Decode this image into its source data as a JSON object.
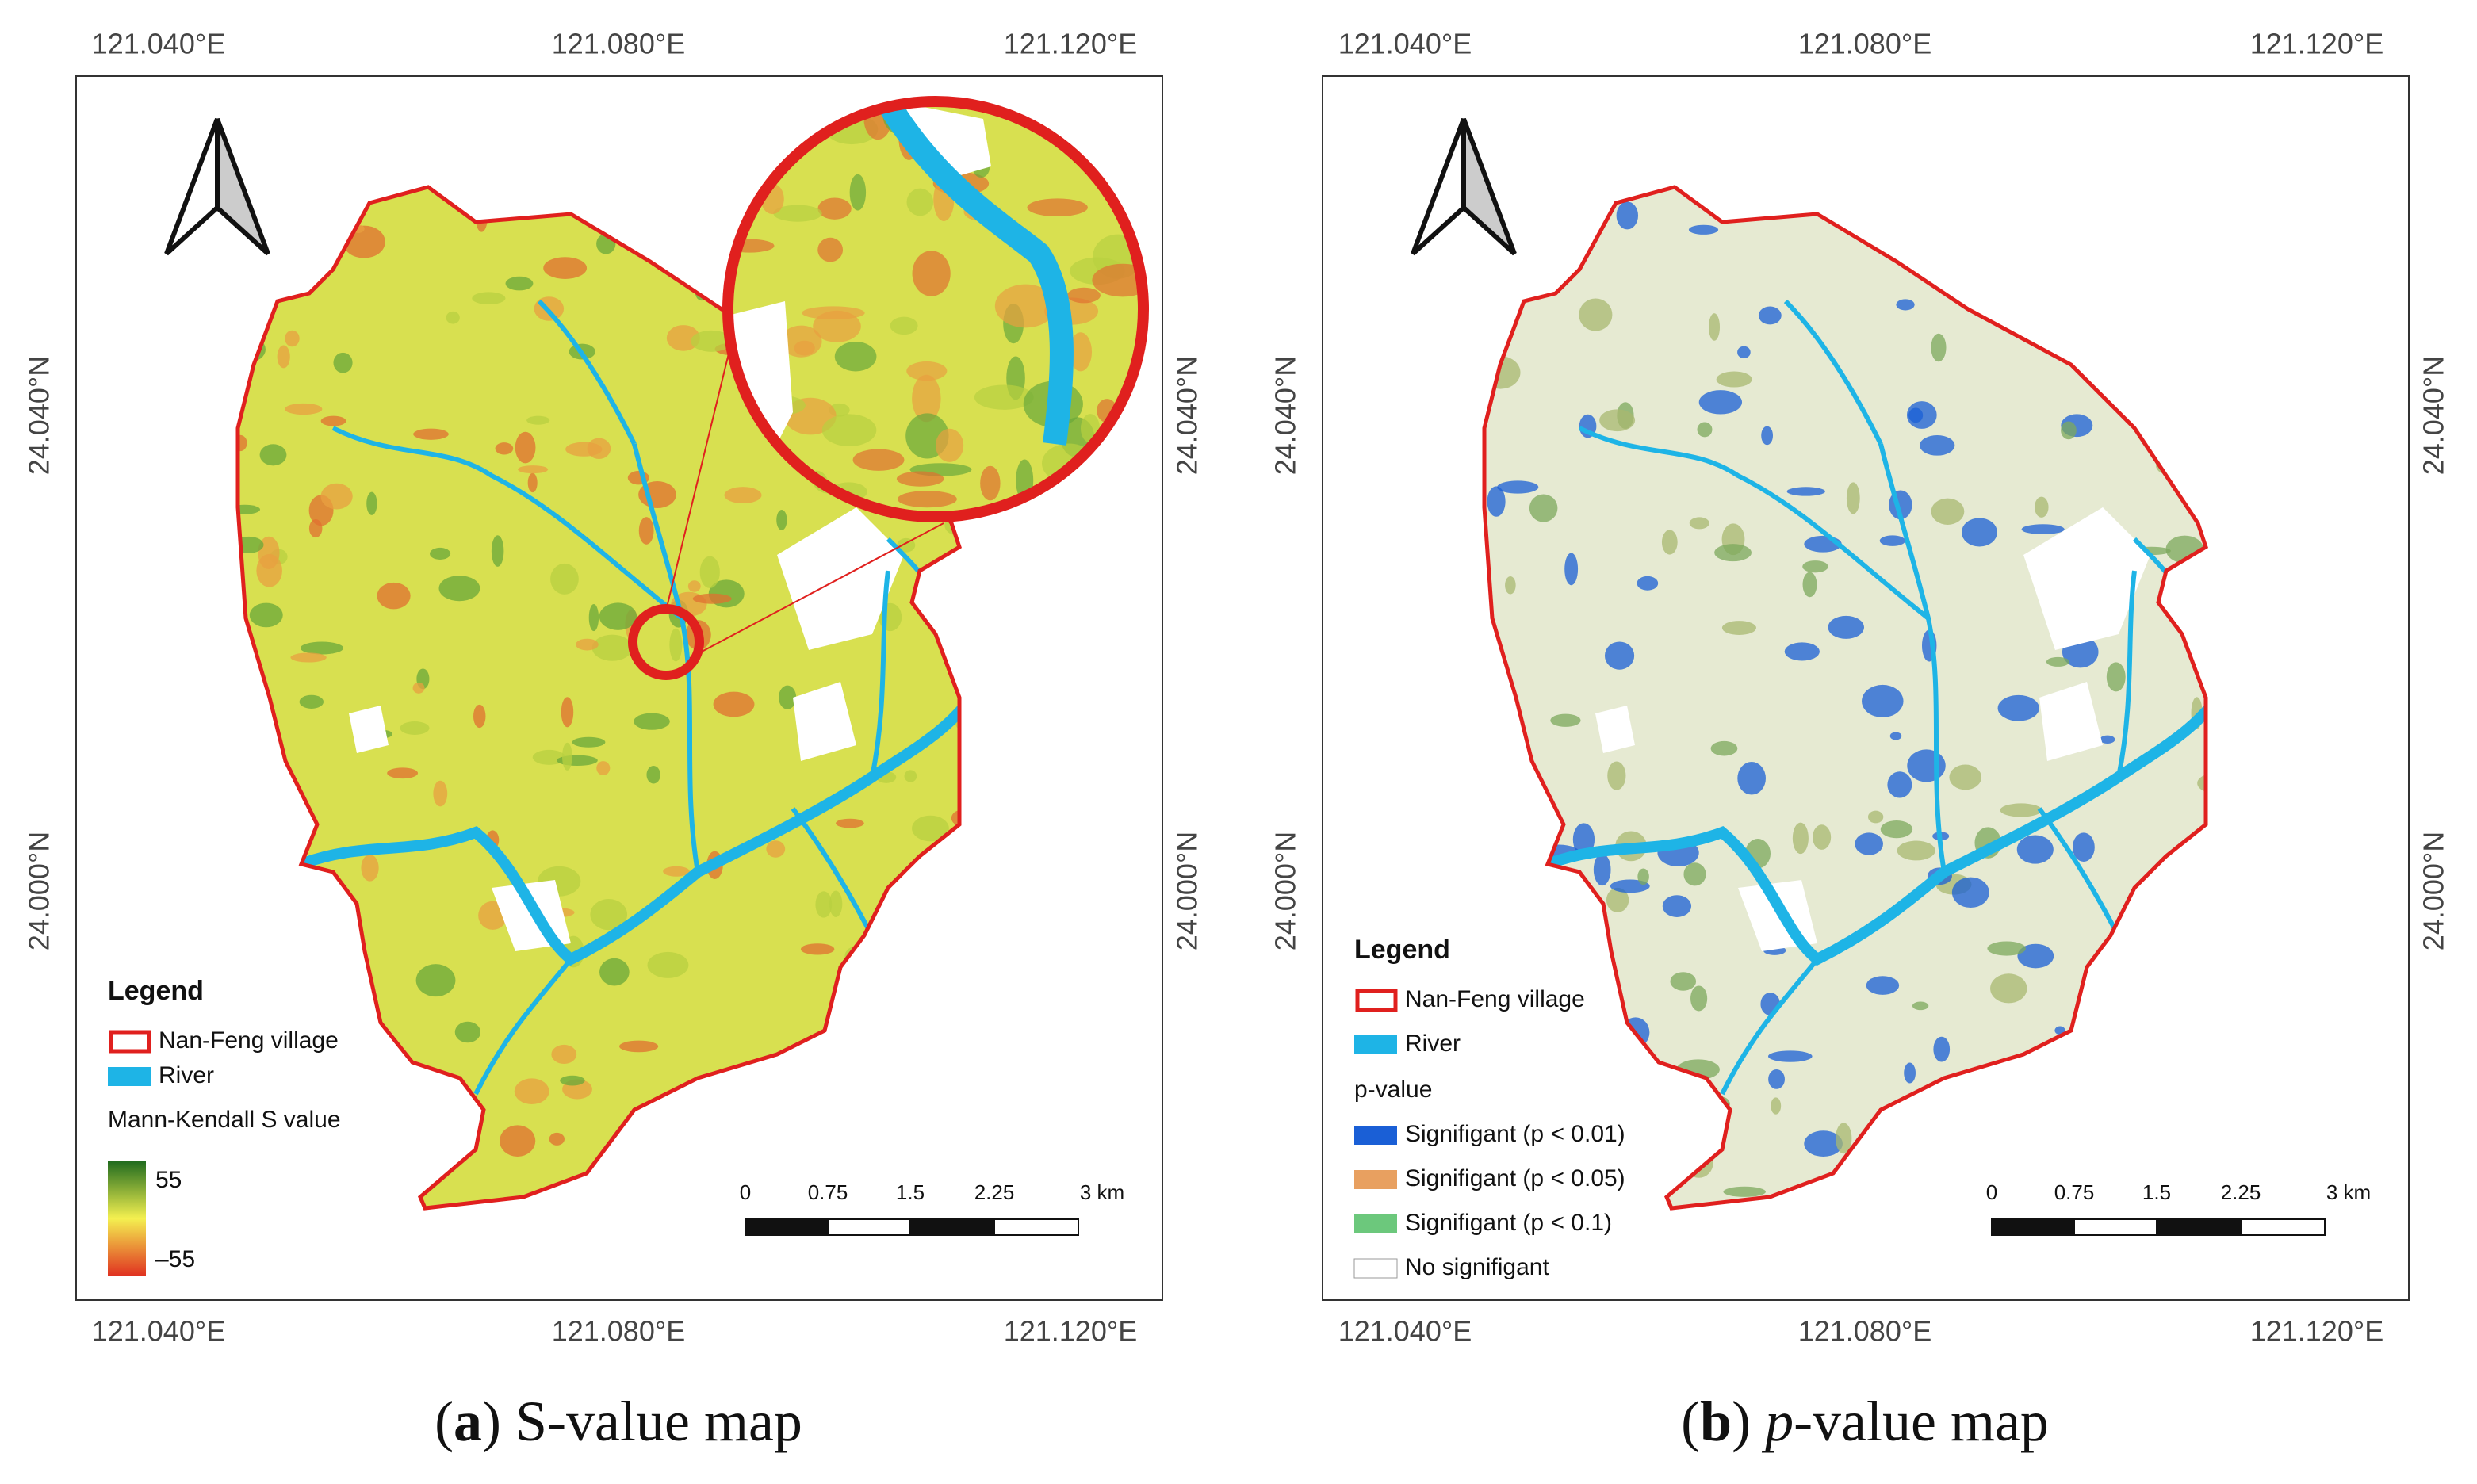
{
  "panels": [
    {
      "caption": {
        "open": "(",
        "label": "a",
        "close": ")",
        "text": "S-value map"
      },
      "longitude_labels": [
        "121.040°E",
        "121.080°E",
        "121.120°E"
      ],
      "latitude_labels": [
        "24.040°N",
        "24.000°N"
      ],
      "legend": {
        "title": "Legend",
        "items": [
          {
            "text": "Nan-Feng village",
            "color": "#e0201e"
          },
          {
            "text": "River",
            "color": "#1eb4e6"
          }
        ],
        "ramp_title": "Mann-Kendall S value",
        "ramp_max": "55",
        "ramp_min": "–55"
      },
      "scale_bar": [
        "0",
        "0.75",
        "1.5",
        "2.25",
        "3 km"
      ]
    },
    {
      "caption": {
        "open": "(",
        "label": "b",
        "close": ")",
        "italic": "p",
        "text": "-value map"
      },
      "longitude_labels": [
        "121.040°E",
        "121.080°E",
        "121.120°E"
      ],
      "latitude_labels": [
        "24.040°N",
        "24.000°N"
      ],
      "legend": {
        "title": "Legend",
        "items": [
          {
            "text": "Nan-Feng village",
            "color": "#e0201e"
          },
          {
            "text": "River",
            "color": "#1eb4e6"
          }
        ],
        "classes_title": "p-value",
        "classes": [
          {
            "text": "Signifigant (p < 0.01)",
            "color": "#1a5fd6"
          },
          {
            "text": "Signifigant (p < 0.05)",
            "color": "#e8a060"
          },
          {
            "text": "Signifigant (p < 0.1)",
            "color": "#6cc87c"
          },
          {
            "text": "No signifigant",
            "color": "#ffffff"
          }
        ]
      },
      "scale_bar": [
        "0",
        "0.75",
        "1.5",
        "2.25",
        "3 km"
      ]
    }
  ]
}
